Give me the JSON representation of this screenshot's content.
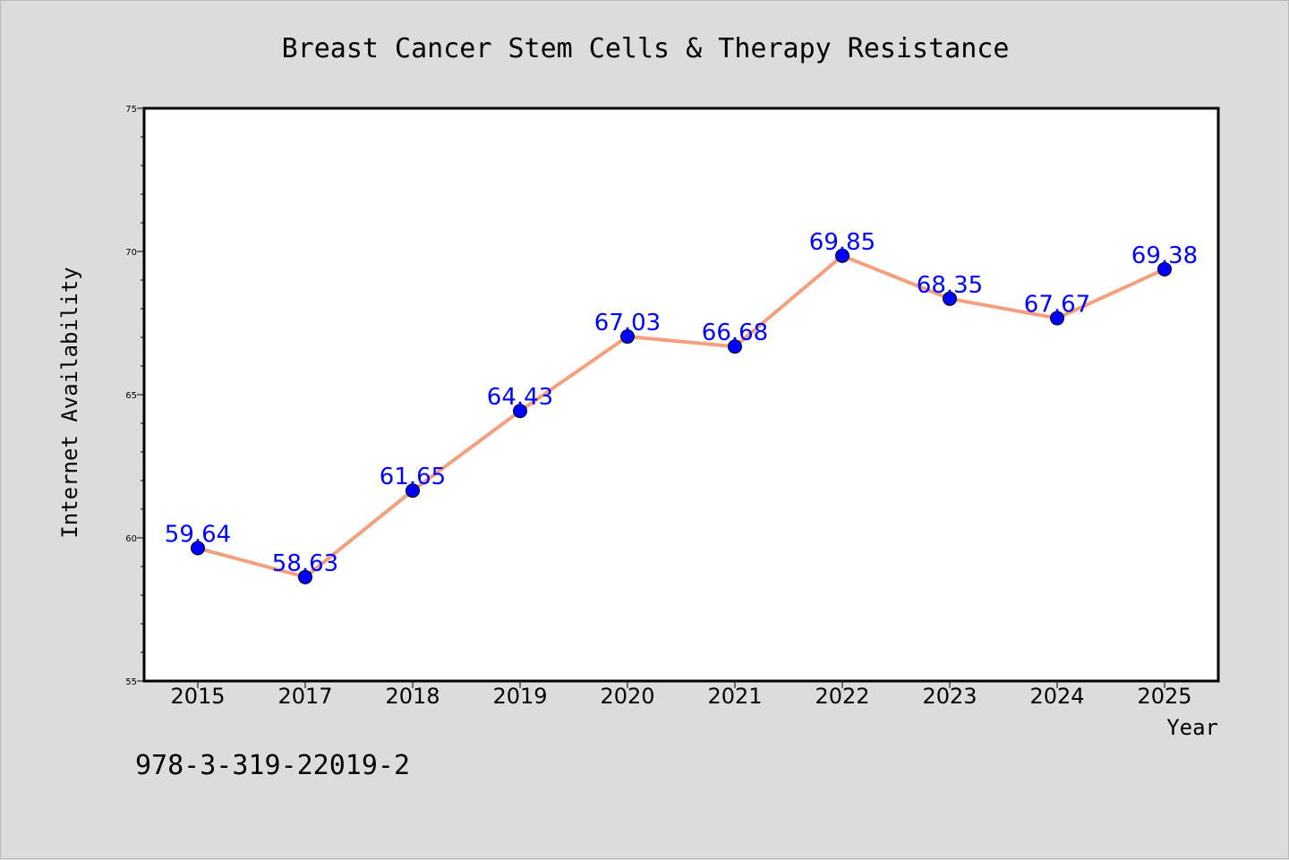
{
  "chart_data": {
    "type": "line",
    "title": "Breast Cancer Stem Cells & Therapy Resistance",
    "xlabel": "Year",
    "ylabel": "Internet Availability",
    "categories": [
      "2015",
      "2017",
      "2018",
      "2019",
      "2020",
      "2021",
      "2022",
      "2023",
      "2024",
      "2025"
    ],
    "series": [
      {
        "values": [
          59.64,
          58.63,
          61.65,
          64.43,
          67.03,
          66.68,
          69.85,
          68.35,
          67.67,
          69.38
        ],
        "labels": [
          "59.64",
          "58.63",
          "61.65",
          "64.43",
          "67.03",
          "66.68",
          "69.85",
          "68.35",
          "67.67",
          "69.38"
        ]
      }
    ],
    "ylim": [
      55,
      75
    ],
    "y_ticks": [
      "55",
      "60",
      "65",
      "70",
      "75"
    ],
    "y_minor_step": 1,
    "grid": false,
    "line_color": "#f4a07e",
    "marker_color": "#0000ff",
    "label_color": "#0000ff"
  },
  "footer": {
    "isbn": "978-3-319-22019-2"
  }
}
